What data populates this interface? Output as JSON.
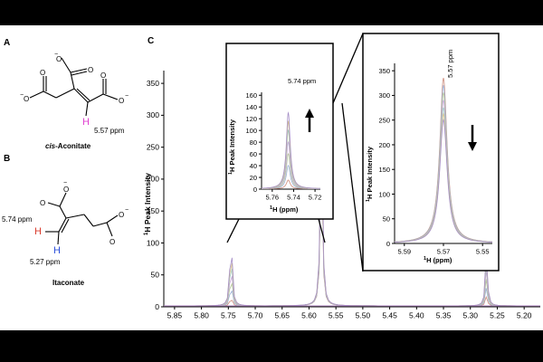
{
  "panels": {
    "a_label": "A",
    "b_label": "B",
    "c_label": "C"
  },
  "structures": {
    "aconitate": {
      "name": "cis-Aconitate",
      "name_italic": "cis",
      "name_rest": "-Aconitate",
      "proton_label": "H",
      "shift": "5.57 ppm",
      "charge": "−",
      "proton_color": "#e040d0"
    },
    "itaconate": {
      "name": "Itaconate",
      "proton_top_label": "H",
      "proton_top_shift": "5.74 ppm",
      "proton_top_color": "#d93a2b",
      "proton_bottom_label": "H",
      "proton_bottom_shift": "5.27 ppm",
      "proton_bottom_color": "#2b4fd9",
      "charge": "−"
    }
  },
  "chart_data": [
    {
      "type": "line",
      "id": "main",
      "ylabel_super": "1",
      "ylabel_rest": "H Peak Intensity",
      "x_ticks": [
        5.85,
        5.8,
        5.75,
        5.7,
        5.65,
        5.6,
        5.55,
        5.5,
        5.45,
        5.4,
        5.35,
        5.3,
        5.25,
        5.2
      ],
      "x_tick_labels": [
        "5.85",
        "5.80",
        "5.75",
        "5.70",
        "5.65",
        "5.60",
        "5.55",
        "5.50",
        "5.45",
        "5.40",
        "5.35",
        "5.30",
        "5.25",
        "5.20"
      ],
      "y_ticks": [
        0,
        50,
        100,
        150,
        200,
        250,
        300,
        350
      ],
      "y_tick_labels": [
        "0",
        "50",
        "100",
        "150",
        "200",
        "250",
        "300",
        "350"
      ],
      "xlim": [
        5.87,
        5.17
      ],
      "ylim": [
        0,
        370
      ],
      "peaks": [
        {
          "center": 5.745,
          "heights": [
            15,
            40,
            60,
            80,
            100,
            115,
            130
          ]
        },
        {
          "center": 5.577,
          "heights": [
            250,
            265,
            280,
            295,
            310,
            325,
            340
          ]
        },
        {
          "center": 5.27,
          "heights": [
            15,
            30,
            45,
            60,
            70,
            80,
            88
          ]
        }
      ]
    },
    {
      "type": "line",
      "id": "inset1",
      "annotation": "5.74 ppm",
      "xlabel_super": "1",
      "xlabel_rest": "H (ppm)",
      "ylabel_super": "1",
      "ylabel_rest": "H Peak Intensity",
      "x_ticks": [
        5.76,
        5.74,
        5.72
      ],
      "x_tick_labels": [
        "5.76",
        "5.74",
        "5.72"
      ],
      "y_ticks": [
        0,
        20,
        40,
        60,
        80,
        100,
        120,
        140,
        160
      ],
      "y_tick_labels": [
        "0",
        "20",
        "40",
        "60",
        "80",
        "100",
        "120",
        "140",
        "160"
      ],
      "xlim": [
        5.77,
        5.715
      ],
      "ylim": [
        0,
        165
      ],
      "center": 5.745,
      "heights": [
        15,
        40,
        60,
        80,
        100,
        115,
        130
      ],
      "trend": "up"
    },
    {
      "type": "line",
      "id": "inset2",
      "annotation": "5.57 ppm",
      "xlabel_super": "1",
      "xlabel_rest": "H (ppm)",
      "ylabel_super": "1",
      "ylabel_rest": "H Peak Intensity",
      "x_ticks": [
        5.59,
        5.57,
        5.55
      ],
      "x_tick_labels": [
        "5.59",
        "5.57",
        "5.55"
      ],
      "y_ticks": [
        0,
        50,
        100,
        150,
        200,
        250,
        300,
        350
      ],
      "y_tick_labels": [
        "0",
        "50",
        "100",
        "150",
        "200",
        "250",
        "300",
        "350"
      ],
      "xlim": [
        5.595,
        5.545
      ],
      "ylim": [
        0,
        365
      ],
      "center": 5.57,
      "heights": [
        335,
        320,
        305,
        290,
        275,
        262,
        250
      ],
      "trend": "down"
    }
  ],
  "series_colors": [
    "#cc8a7a",
    "#9bb0d6",
    "#b6c79a",
    "#c9a6d9",
    "#9dc9c4",
    "#d8c489",
    "#a58ec7"
  ]
}
